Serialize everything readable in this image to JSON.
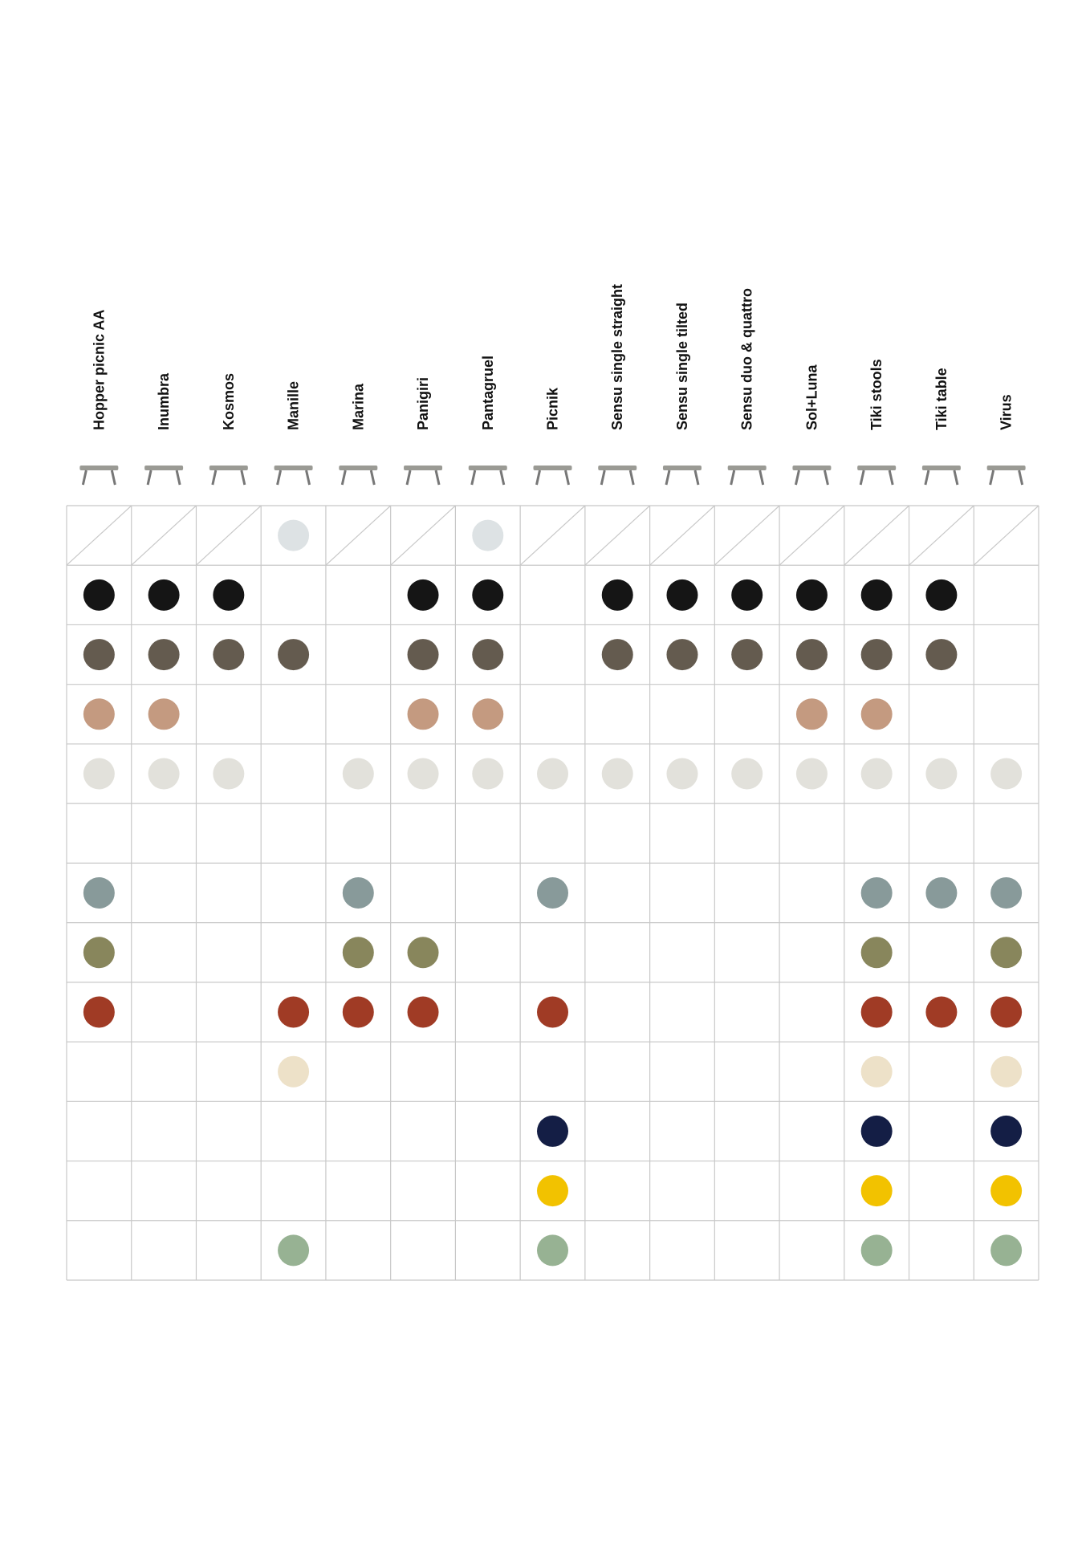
{
  "products": [
    "Hopper picnic AA",
    "Inumbra",
    "Kosmos",
    "Manille",
    "Marina",
    "Panigiri",
    "Pantagruel",
    "Picnik",
    "Sensu single straight",
    "Sensu single tilted",
    "Sensu duo & quattro",
    "Sol+Luna",
    "Tiki stools",
    "Tiki table",
    "Virus"
  ],
  "rows": [
    {
      "color": "#dde2e4",
      "available": [
        false,
        false,
        false,
        true,
        false,
        false,
        true,
        false,
        false,
        false,
        false,
        false,
        false,
        false,
        false
      ]
    },
    {
      "color": "#151515",
      "available": [
        true,
        true,
        true,
        false,
        false,
        true,
        true,
        false,
        true,
        true,
        true,
        true,
        true,
        true,
        false
      ]
    },
    {
      "color": "#645b4f",
      "available": [
        true,
        true,
        true,
        true,
        false,
        true,
        true,
        false,
        true,
        true,
        true,
        true,
        true,
        true,
        false
      ]
    },
    {
      "color": "#c49a80",
      "available": [
        true,
        true,
        false,
        false,
        false,
        true,
        true,
        false,
        false,
        false,
        false,
        true,
        true,
        false,
        false
      ]
    },
    {
      "color": "#e2e1db",
      "available": [
        true,
        true,
        true,
        false,
        true,
        true,
        true,
        true,
        true,
        true,
        true,
        true,
        true,
        true,
        true
      ]
    },
    {
      "color": "#ffffff",
      "available": [
        false,
        false,
        false,
        false,
        false,
        false,
        false,
        false,
        false,
        false,
        false,
        false,
        false,
        false,
        false
      ]
    },
    {
      "color": "#889a9a",
      "available": [
        true,
        false,
        false,
        false,
        true,
        false,
        false,
        true,
        false,
        false,
        false,
        false,
        true,
        true,
        true
      ]
    },
    {
      "color": "#88865c",
      "available": [
        true,
        false,
        false,
        false,
        true,
        true,
        false,
        false,
        false,
        false,
        false,
        false,
        true,
        false,
        true
      ]
    },
    {
      "color": "#a03b25",
      "available": [
        true,
        false,
        false,
        true,
        true,
        true,
        false,
        true,
        false,
        false,
        false,
        false,
        true,
        true,
        true
      ]
    },
    {
      "color": "#ede1c8",
      "available": [
        false,
        false,
        false,
        true,
        false,
        false,
        false,
        false,
        false,
        false,
        false,
        false,
        true,
        false,
        true
      ]
    },
    {
      "color": "#141e45",
      "available": [
        false,
        false,
        false,
        false,
        false,
        false,
        false,
        true,
        false,
        false,
        false,
        false,
        true,
        false,
        true
      ]
    },
    {
      "color": "#f2c200",
      "available": [
        false,
        false,
        false,
        false,
        false,
        false,
        false,
        true,
        false,
        false,
        false,
        false,
        true,
        false,
        true
      ]
    },
    {
      "color": "#97b293",
      "available": [
        false,
        false,
        false,
        true,
        false,
        false,
        false,
        true,
        false,
        false,
        false,
        false,
        true,
        false,
        true
      ]
    }
  ]
}
